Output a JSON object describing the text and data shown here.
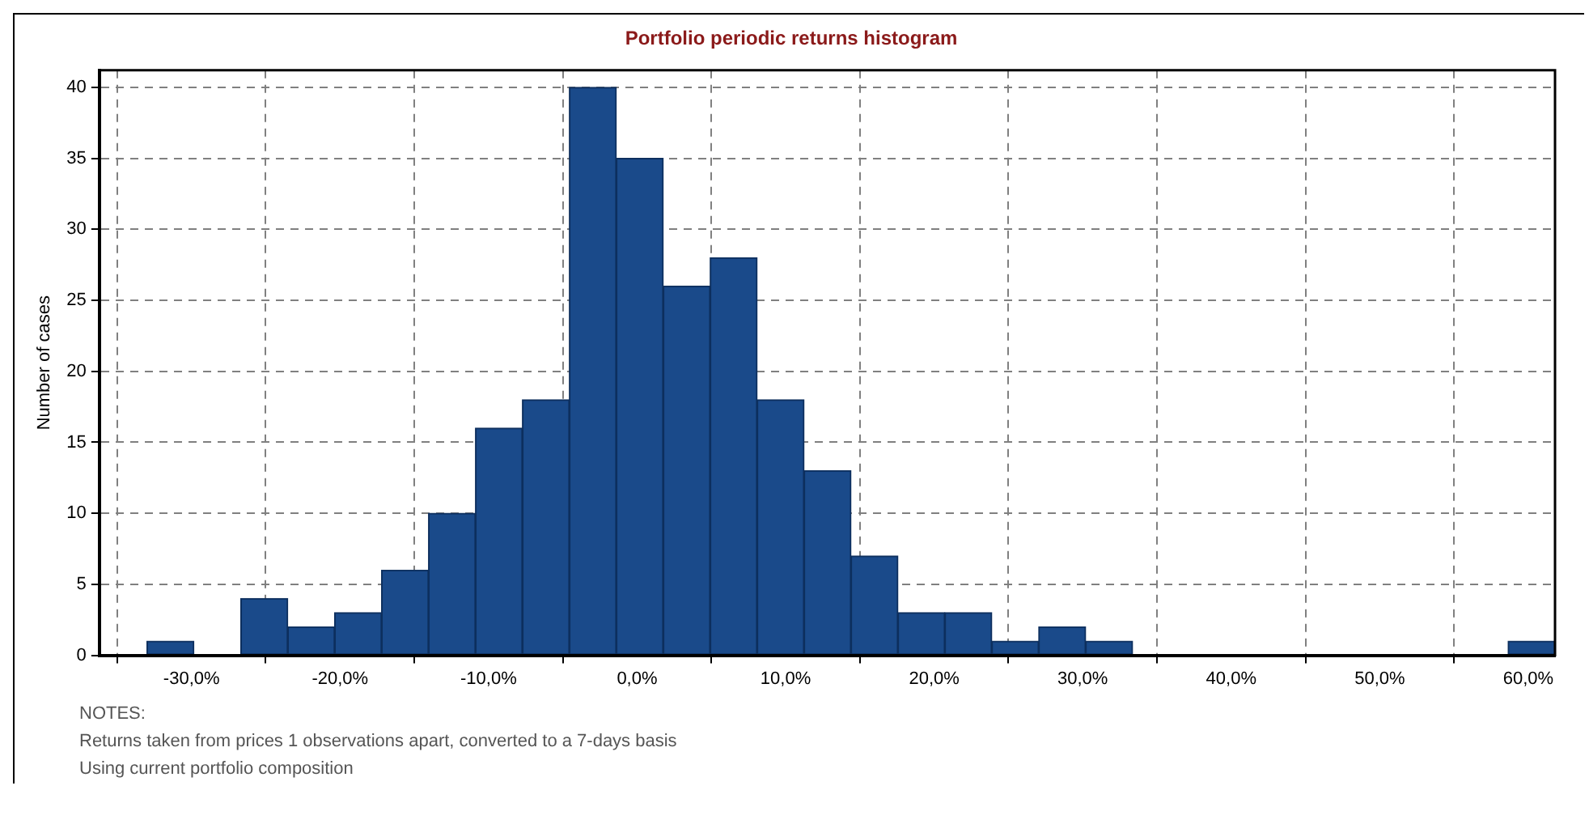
{
  "chart_data": {
    "type": "histogram",
    "title": "Portfolio periodic returns histogram",
    "ylabel": "Number of cases",
    "color": "#1a4a8a",
    "bins": [
      -33.0,
      -29.84,
      -26.68,
      -23.52,
      -20.36,
      -17.2,
      -14.04,
      -10.88,
      -7.72,
      -4.56,
      -1.4,
      1.76,
      4.92,
      8.08,
      11.24,
      14.4,
      17.56,
      20.72,
      23.88,
      27.04,
      30.2,
      33.36,
      36.52,
      39.68,
      42.84,
      46.0,
      49.16,
      52.32,
      55.48,
      58.64,
      61.8
    ],
    "values": [
      1,
      0,
      4,
      2,
      3,
      6,
      10,
      16,
      18,
      40,
      35,
      26,
      28,
      18,
      13,
      7,
      3,
      3,
      1,
      2,
      1,
      0,
      0,
      0,
      0,
      0,
      0,
      0,
      0,
      1
    ],
    "xlim": [
      -36.2,
      61.8
    ],
    "xticks": [
      {
        "value": -30,
        "label": "-30,0%"
      },
      {
        "value": -20,
        "label": "-20,0%"
      },
      {
        "value": -10,
        "label": "-10,0%"
      },
      {
        "value": 0,
        "label": "0,0%"
      },
      {
        "value": 10,
        "label": "10,0%"
      },
      {
        "value": 20,
        "label": "20,0%"
      },
      {
        "value": 30,
        "label": "30,0%"
      },
      {
        "value": 40,
        "label": "40,0%"
      },
      {
        "value": 50,
        "label": "50,0%"
      },
      {
        "value": 60,
        "label": "60,0%"
      }
    ],
    "ylim": [
      0,
      41.2
    ],
    "yticks": [
      0,
      5,
      10,
      15,
      20,
      25,
      30,
      35,
      40
    ],
    "grid": true,
    "legend": false,
    "annotations": [
      "NOTES:",
      "Returns taken from prices 1 observations apart, converted to a 7-days basis",
      "Using current portfolio composition"
    ]
  }
}
